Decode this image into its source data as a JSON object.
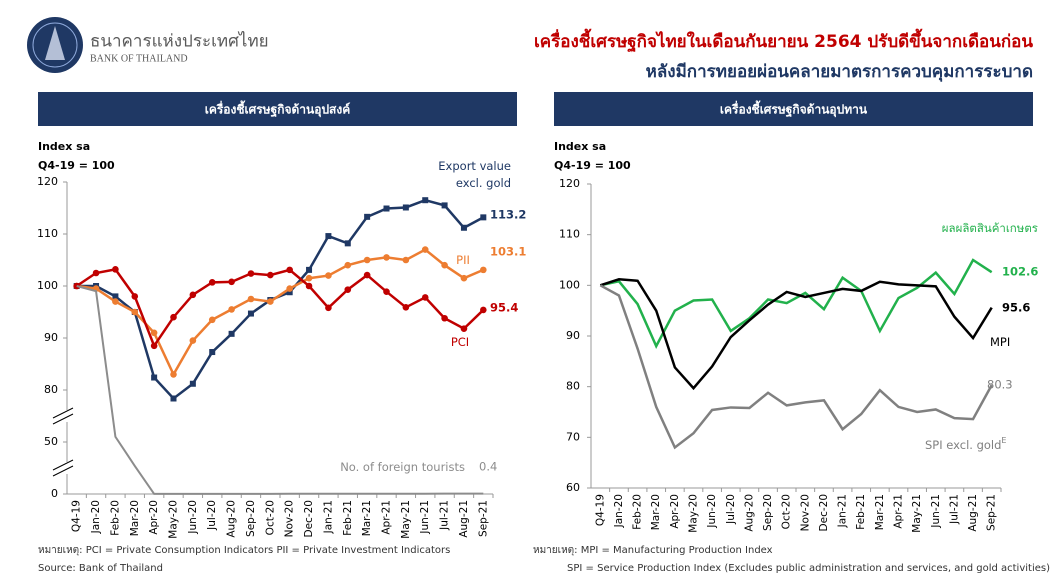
{
  "header": {
    "bank_name_th": "ธนาคารแห่งประเทศไทย",
    "bank_name_en": "BANK OF THAILAND",
    "title_lines": [
      "เครื่องชี้เศรษฐกิจไทยในเดือนกันยายน 2564 ปรับดีขึ้นจากเดือนก่อน",
      "หลังมีการทยอยผ่อนคลายมาตรการควบคุมการระบาด"
    ]
  },
  "chart_data": [
    {
      "type": "line",
      "title": "เครื่องชี้เศรษฐกิจด้านอุปสงค์",
      "y_label_lines": [
        "Index sa",
        "Q4-19 = 100"
      ],
      "categories": [
        "Q4-19",
        "Jan-20",
        "Feb-20",
        "Mar-20",
        "Apr-20",
        "May-20",
        "Jun-20",
        "Jul-20",
        "Aug-20",
        "Sep-20",
        "Oct-20",
        "Nov-20",
        "Dec-20",
        "Jan-21",
        "Feb-21",
        "Mar-21",
        "Apr-21",
        "May-21",
        "Jun-21",
        "Jul-21",
        "Aug-21",
        "Sep-21"
      ],
      "ylim": [
        0,
        120
      ],
      "yticks": [
        0,
        50,
        80,
        90,
        100,
        110,
        120
      ],
      "axis_break": true,
      "grid": false,
      "series": [
        {
          "name": "Export value excl. gold",
          "color": "#1f3864",
          "marker": "square",
          "values": [
            100,
            100,
            98,
            95,
            82.4,
            75.1,
            81.2,
            87.3,
            90.8,
            94.7,
            97.3,
            98.8,
            103.1,
            109.6,
            108.2,
            113.3,
            114.9,
            115.1,
            116.5,
            115.5,
            111.2,
            113.2
          ],
          "end_label": "113.2"
        },
        {
          "name": "PII",
          "color": "#ed7d31",
          "marker": "circle",
          "values": [
            100,
            99.5,
            97,
            95,
            91,
            83,
            89.5,
            93.5,
            95.5,
            97.5,
            97,
            99.5,
            101.5,
            102,
            104,
            105,
            105.5,
            105,
            107,
            104,
            101.5,
            103.1
          ],
          "end_label": "103.1"
        },
        {
          "name": "PCI",
          "color": "#c00000",
          "marker": "circle",
          "values": [
            100,
            102.5,
            103.2,
            98,
            88.5,
            94,
            98.3,
            100.7,
            100.8,
            102.4,
            102.1,
            103.1,
            100,
            95.8,
            99.3,
            102.1,
            98.9,
            95.9,
            97.8,
            93.8,
            91.8,
            95.4
          ],
          "end_label": "95.4"
        },
        {
          "name": "No. of foreign tourists",
          "color": "#8c8c8c",
          "marker": "none",
          "values": [
            100,
            99,
            53,
            27,
            0.1,
            0.1,
            0.1,
            0.1,
            0.1,
            0.1,
            0.1,
            0.2,
            0.2,
            0.2,
            0.2,
            0.2,
            0.2,
            0.2,
            0.3,
            0.4,
            0.4,
            0.4
          ],
          "end_label": "0.4"
        }
      ],
      "notes": [
        "หมายเหตุ: PCI = Private Consumption Indicators    PII = Private Investment Indicators",
        "Source: Bank of Thailand"
      ]
    },
    {
      "type": "line",
      "title": "เครื่องชี้เศรษฐกิจด้านอุปทาน",
      "y_label_lines": [
        "Index sa",
        "Q4-19 = 100"
      ],
      "categories": [
        "Q4-19",
        "Jan-20",
        "Feb-20",
        "Mar-20",
        "Apr-20",
        "May-20",
        "Jun-20",
        "Jul-20",
        "Aug-20",
        "Sep-20",
        "Oct-20",
        "Nov-20",
        "Dec-20",
        "Jan-21",
        "Feb-21",
        "Mar-21",
        "Apr-21",
        "May-21",
        "Jun-21",
        "Jul-21",
        "Aug-21",
        "Sep-21"
      ],
      "ylim": [
        60,
        120
      ],
      "yticks": [
        60,
        70,
        80,
        90,
        100,
        110,
        120
      ],
      "axis_break": false,
      "grid": false,
      "series": [
        {
          "name": "ผลผลิตสินค้าเกษตร",
          "color": "#22b14c",
          "marker": "none",
          "values": [
            100,
            100.8,
            96.3,
            88,
            95,
            97,
            97.2,
            91,
            93.5,
            97.2,
            96.5,
            98.5,
            95.3,
            101.5,
            98.9,
            91,
            97.5,
            99.5,
            102.5,
            98.3,
            105,
            102.6
          ],
          "end_label": "102.6"
        },
        {
          "name": "MPI",
          "color": "#000000",
          "marker": "none",
          "values": [
            100,
            101.2,
            100.9,
            95,
            83.8,
            79.7,
            84,
            89.8,
            93.1,
            96.2,
            98.7,
            97.7,
            98.5,
            99.3,
            98.9,
            100.7,
            100.2,
            100,
            99.8,
            93.8,
            89.6,
            95.6
          ],
          "end_label": "95.6"
        },
        {
          "name": "SPI excl. gold",
          "name_superscript": "E",
          "color": "#808080",
          "marker": "none",
          "values": [
            100,
            98,
            87.5,
            76,
            68,
            70.8,
            75.4,
            75.9,
            75.8,
            78.8,
            76.3,
            76.9,
            77.3,
            71.6,
            74.6,
            79.3,
            76,
            75,
            75.5,
            73.8,
            73.6,
            80.3
          ],
          "end_label": "80.3"
        }
      ],
      "notes": [
        "หมายเหตุ: MPI = Manufacturing Production Index",
        "SPI = Service Production Index (Excludes public administration and services, and gold activities)"
      ]
    }
  ]
}
